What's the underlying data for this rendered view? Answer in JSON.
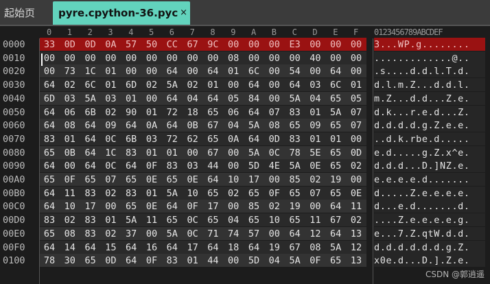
{
  "tabs": [
    {
      "label": "起始页",
      "active": false
    },
    {
      "label": "pyre.cpython-36.pyc",
      "active": true,
      "close": "×"
    }
  ],
  "column_headers": [
    "0",
    "1",
    "2",
    "3",
    "4",
    "5",
    "6",
    "7",
    "8",
    "9",
    "A",
    "B",
    "C",
    "D",
    "E",
    "F"
  ],
  "ascii_header": "0123456789ABCDEF",
  "selected_row": "0000",
  "colors": {
    "selection": "#9a1212",
    "tab_active": "#62d3bd",
    "background": "#1c1c1c"
  },
  "rows": [
    {
      "offset": "0000",
      "hex": "33 0D 0D 0A 57 50 CC 67 9C 00 00 00 E3 00 00 00",
      "ascii": "3...WP.g........"
    },
    {
      "offset": "0010",
      "hex": "00 00 00 00 00 00 00 00 00 08 00 00 00 40 00 00",
      "ascii": ".............@.."
    },
    {
      "offset": "0020",
      "hex": "00 73 1C 01 00 00 64 00 64 01 6C 00 54 00 64 00",
      "ascii": ".s....d.d.l.T.d."
    },
    {
      "offset": "0030",
      "hex": "64 02 6C 01 6D 02 5A 02 01 00 64 00 64 03 6C 01",
      "ascii": "d.l.m.Z...d.d.l."
    },
    {
      "offset": "0040",
      "hex": "6D 03 5A 03 01 00 64 04 64 05 84 00 5A 04 65 05",
      "ascii": "m.Z...d.d...Z.e."
    },
    {
      "offset": "0050",
      "hex": "64 06 6B 02 90 01 72 18 65 06 64 07 83 01 5A 07",
      "ascii": "d.k...r.e.d...Z."
    },
    {
      "offset": "0060",
      "hex": "64 08 64 09 64 0A 64 0B 67 04 5A 08 65 09 65 07",
      "ascii": "d.d.d.d.g.Z.e.e."
    },
    {
      "offset": "0070",
      "hex": "83 01 64 0C 6B 03 72 62 65 0A 64 0D 83 01 01 00",
      "ascii": "..d.k.rbe.d....."
    },
    {
      "offset": "0080",
      "hex": "65 0B 64 1C 83 01 01 00 67 00 5A 0C 78 5E 65 0D",
      "ascii": "e.d.....g.Z.x^e."
    },
    {
      "offset": "0090",
      "hex": "64 00 64 0C 64 0F 83 03 44 00 5D 4E 5A 0E 65 02",
      "ascii": "d.d.d...D.]NZ.e."
    },
    {
      "offset": "00A0",
      "hex": "65 0F 65 07 65 0E 65 0E 64 10 17 00 85 02 19 00",
      "ascii": "e.e.e.e.d......."
    },
    {
      "offset": "00B0",
      "hex": "64 11 83 02 83 01 5A 10 65 02 65 0F 65 07 65 0E",
      "ascii": "d.....Z.e.e.e.e."
    },
    {
      "offset": "00C0",
      "hex": "64 10 17 00 65 0E 64 0F 17 00 85 02 19 00 64 11",
      "ascii": "d...e.d.......d."
    },
    {
      "offset": "00D0",
      "hex": "83 02 83 01 5A 11 65 0C 65 04 65 10 65 11 67 02",
      "ascii": "....Z.e.e.e.e.g."
    },
    {
      "offset": "00E0",
      "hex": "65 08 83 02 37 00 5A 0C 71 74 57 00 64 12 64 13",
      "ascii": "e...7.Z.qtW.d.d."
    },
    {
      "offset": "00F0",
      "hex": "64 14 64 15 64 16 64 17 64 18 64 19 67 08 5A 12",
      "ascii": "d.d.d.d.d.d.g.Z."
    },
    {
      "offset": "0100",
      "hex": "78 30 65 0D 64 0F 83 01 44 00 5D 04 5A 0F 65 13",
      "ascii": "x0e.d...D.].Z.e."
    }
  ],
  "watermark": "CSDN @郭逍遥"
}
